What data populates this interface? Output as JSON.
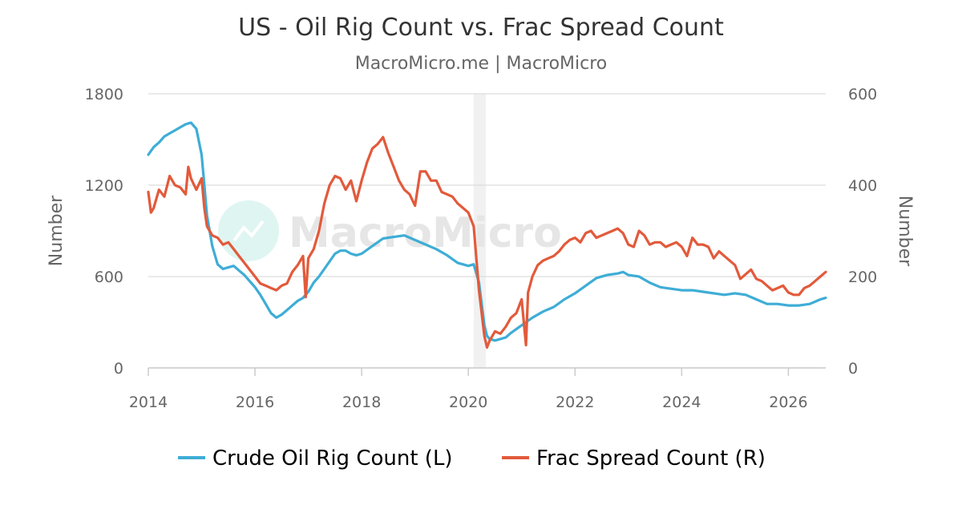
{
  "chart_data": {
    "type": "line",
    "title": "US - Oil Rig Count vs. Frac Spread Count",
    "subtitle": "MacroMicro.me | MacroMicro",
    "watermark": "MacroMicro",
    "xlabel": "",
    "x_ticks": [
      "2014",
      "2016",
      "2018",
      "2020",
      "2022",
      "2024",
      "2026"
    ],
    "xlim": [
      2014.0,
      2026.7
    ],
    "y_left": {
      "label": "Number",
      "ylim": [
        0,
        1800
      ],
      "ticks": [
        "0",
        "600",
        "1200",
        "1800"
      ]
    },
    "y_right": {
      "label": "Number",
      "ylim": [
        0,
        600
      ],
      "ticks": [
        "0",
        "200",
        "400",
        "600"
      ]
    },
    "grid": true,
    "legend_position": "bottom",
    "shaded_region": {
      "x_start": 2020.1,
      "x_end": 2020.33
    },
    "series": [
      {
        "name": "Crude Oil Rig Count (L)",
        "axis": "left",
        "color": "#3eadd6",
        "x": [
          2014.0,
          2014.1,
          2014.2,
          2014.3,
          2014.4,
          2014.5,
          2014.6,
          2014.7,
          2014.8,
          2014.9,
          2015.0,
          2015.05,
          2015.1,
          2015.2,
          2015.3,
          2015.4,
          2015.5,
          2015.6,
          2015.7,
          2015.8,
          2015.9,
          2016.0,
          2016.1,
          2016.2,
          2016.3,
          2016.4,
          2016.5,
          2016.6,
          2016.7,
          2016.8,
          2016.9,
          2017.0,
          2017.1,
          2017.2,
          2017.3,
          2017.4,
          2017.5,
          2017.6,
          2017.7,
          2017.8,
          2017.9,
          2018.0,
          2018.2,
          2018.4,
          2018.6,
          2018.8,
          2019.0,
          2019.2,
          2019.4,
          2019.6,
          2019.8,
          2020.0,
          2020.1,
          2020.2,
          2020.3,
          2020.35,
          2020.4,
          2020.5,
          2020.6,
          2020.7,
          2020.8,
          2021.0,
          2021.2,
          2021.4,
          2021.6,
          2021.8,
          2022.0,
          2022.2,
          2022.4,
          2022.6,
          2022.8,
          2022.9,
          2023.0,
          2023.2,
          2023.4,
          2023.6,
          2023.8,
          2024.0,
          2024.2,
          2024.4,
          2024.6,
          2024.8,
          2025.0,
          2025.2,
          2025.4,
          2025.6,
          2025.8,
          2026.0,
          2026.2,
          2026.4,
          2026.6,
          2026.7
        ],
        "values": [
          1400,
          1450,
          1480,
          1520,
          1540,
          1560,
          1580,
          1600,
          1610,
          1570,
          1400,
          1200,
          1000,
          800,
          680,
          650,
          660,
          670,
          640,
          610,
          570,
          530,
          480,
          420,
          360,
          330,
          350,
          380,
          410,
          440,
          460,
          500,
          560,
          600,
          650,
          700,
          750,
          770,
          770,
          750,
          740,
          750,
          800,
          850,
          860,
          870,
          840,
          810,
          780,
          740,
          690,
          670,
          680,
          560,
          280,
          210,
          190,
          180,
          190,
          200,
          230,
          280,
          330,
          370,
          400,
          450,
          490,
          540,
          590,
          610,
          620,
          630,
          610,
          600,
          560,
          530,
          520,
          510,
          510,
          500,
          490,
          480,
          490,
          480,
          450,
          420,
          420,
          410,
          410,
          420,
          450,
          460
        ]
      },
      {
        "name": "Frac Spread Count (R)",
        "axis": "right",
        "color": "#e25a3b",
        "x": [
          2014.0,
          2014.05,
          2014.1,
          2014.2,
          2014.3,
          2014.4,
          2014.5,
          2014.6,
          2014.7,
          2014.75,
          2014.8,
          2014.9,
          2015.0,
          2015.05,
          2015.1,
          2015.2,
          2015.3,
          2015.4,
          2015.5,
          2015.6,
          2015.7,
          2015.8,
          2015.9,
          2016.0,
          2016.1,
          2016.2,
          2016.3,
          2016.4,
          2016.5,
          2016.6,
          2016.7,
          2016.8,
          2016.9,
          2016.95,
          2017.0,
          2017.1,
          2017.2,
          2017.3,
          2017.4,
          2017.5,
          2017.6,
          2017.7,
          2017.8,
          2017.9,
          2018.0,
          2018.1,
          2018.2,
          2018.3,
          2018.4,
          2018.5,
          2018.6,
          2018.7,
          2018.8,
          2018.9,
          2019.0,
          2019.1,
          2019.2,
          2019.3,
          2019.4,
          2019.5,
          2019.6,
          2019.7,
          2019.8,
          2019.9,
          2020.0,
          2020.1,
          2020.2,
          2020.3,
          2020.35,
          2020.4,
          2020.5,
          2020.6,
          2020.7,
          2020.8,
          2020.9,
          2021.0,
          2021.08,
          2021.12,
          2021.2,
          2021.3,
          2021.4,
          2021.5,
          2021.6,
          2021.7,
          2021.8,
          2021.9,
          2022.0,
          2022.1,
          2022.2,
          2022.3,
          2022.4,
          2022.5,
          2022.6,
          2022.7,
          2022.8,
          2022.9,
          2023.0,
          2023.1,
          2023.2,
          2023.3,
          2023.4,
          2023.5,
          2023.6,
          2023.7,
          2023.8,
          2023.9,
          2024.0,
          2024.1,
          2024.2,
          2024.3,
          2024.4,
          2024.5,
          2024.6,
          2024.7,
          2024.8,
          2024.9,
          2025.0,
          2025.05,
          2025.1,
          2025.2,
          2025.3,
          2025.4,
          2025.5,
          2025.6,
          2025.7,
          2025.8,
          2025.9,
          2026.0,
          2026.1,
          2026.2,
          2026.3,
          2026.4,
          2026.5,
          2026.6,
          2026.7
        ],
        "values": [
          385,
          340,
          350,
          390,
          375,
          420,
          400,
          395,
          380,
          440,
          415,
          390,
          415,
          350,
          310,
          290,
          285,
          270,
          275,
          260,
          245,
          230,
          215,
          200,
          185,
          180,
          175,
          170,
          180,
          185,
          210,
          225,
          245,
          155,
          240,
          260,
          300,
          360,
          400,
          420,
          415,
          390,
          410,
          365,
          410,
          450,
          480,
          490,
          505,
          470,
          440,
          410,
          390,
          380,
          355,
          430,
          430,
          410,
          410,
          385,
          380,
          375,
          360,
          350,
          340,
          310,
          170,
          70,
          45,
          60,
          80,
          75,
          90,
          110,
          120,
          150,
          50,
          165,
          200,
          225,
          235,
          240,
          245,
          255,
          270,
          280,
          285,
          275,
          295,
          300,
          285,
          290,
          295,
          300,
          305,
          295,
          270,
          265,
          300,
          290,
          270,
          275,
          275,
          265,
          270,
          275,
          265,
          245,
          285,
          270,
          270,
          265,
          240,
          255,
          245,
          235,
          225,
          210,
          195,
          205,
          215,
          195,
          190,
          180,
          170,
          175,
          180,
          165,
          160,
          160,
          175,
          180,
          190,
          200,
          210
        ]
      }
    ]
  }
}
